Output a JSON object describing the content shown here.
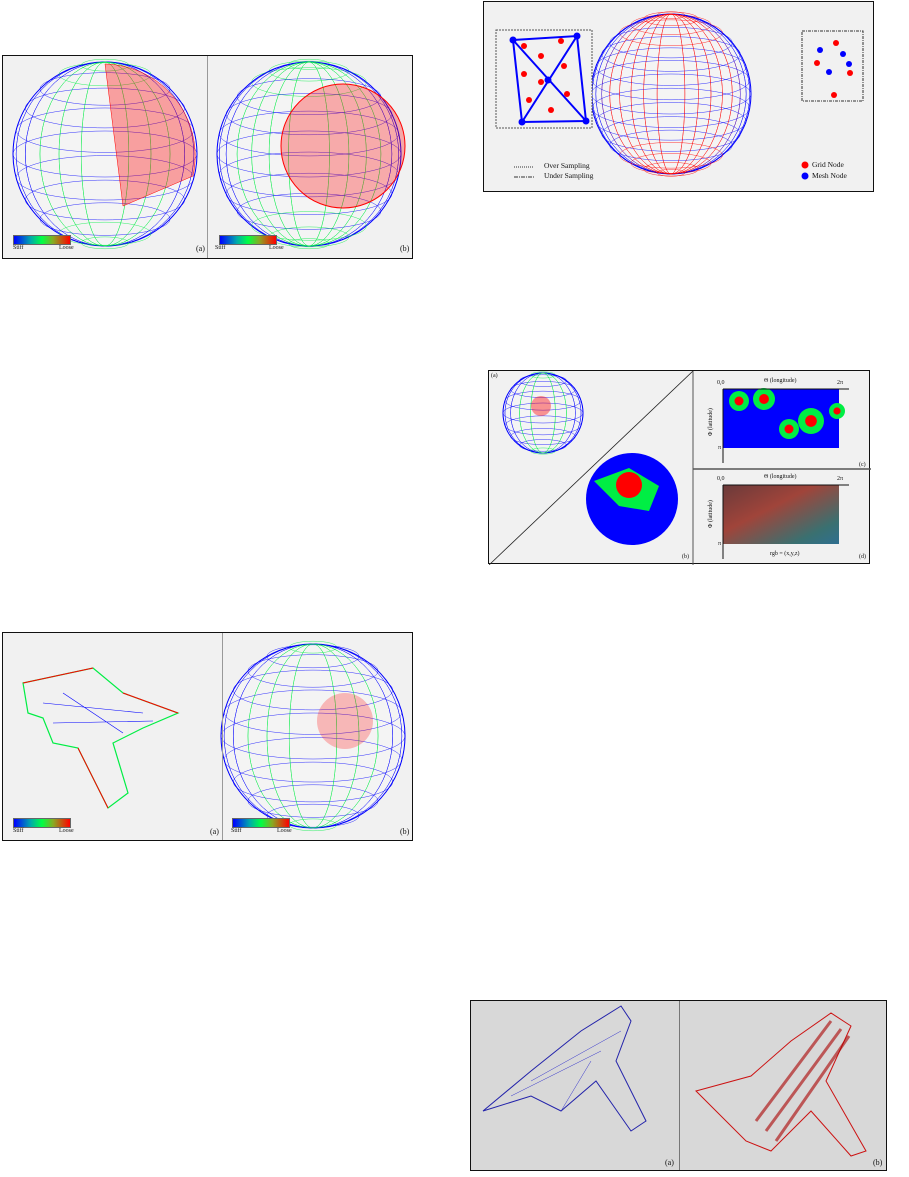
{
  "colors": {
    "stiff": "#0000ff",
    "mid": "#00ee44",
    "loose": "#ff0000",
    "panel_bg": "#f1f1f1"
  },
  "figure1": {
    "panels": [
      {
        "label": "(a)"
      },
      {
        "label": "(b)"
      }
    ],
    "colorbar": {
      "min_label": "Stiff",
      "max_label": "Loose"
    }
  },
  "figure2": {
    "legend": {
      "over": "Over Sampling",
      "under": "Under Sampling",
      "grid": "Grid Node",
      "mesh": "Mesh Node"
    }
  },
  "figure3": {
    "panels": {
      "a": "(a)",
      "b": "(b)",
      "c": "(c)",
      "d": "(d)"
    },
    "axis": {
      "origin": "0,0",
      "theta": "Θ (longitude)",
      "two_pi": "2π",
      "phi": "Φ (latitude)",
      "pi": "π"
    },
    "rgb_label": "rgb = (x,y,z)"
  },
  "figure4": {
    "panels": [
      {
        "label": "(a)"
      },
      {
        "label": "(b)"
      }
    ],
    "colorbar": {
      "min_label": "Stiff",
      "max_label": "Loose"
    }
  },
  "figure5": {
    "panels": [
      {
        "label": "(a)"
      },
      {
        "label": "(b)"
      }
    ]
  }
}
